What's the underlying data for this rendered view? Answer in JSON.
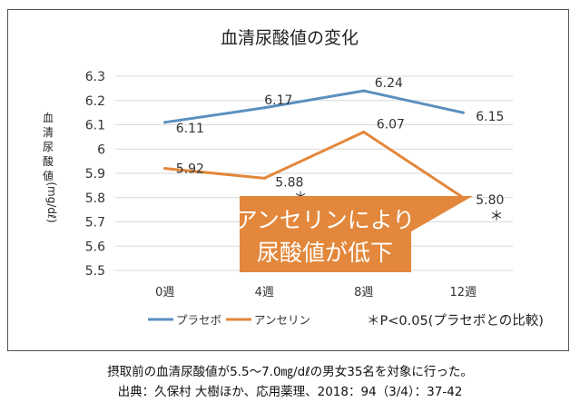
{
  "chart_data": {
    "type": "line",
    "title": "血清尿酸値の変化",
    "ylabel_chars": [
      "血",
      "清",
      "尿",
      "酸",
      "値"
    ],
    "ylabel_unit": "(mg/dℓ)",
    "categories": [
      "0週",
      "4週",
      "8週",
      "12週"
    ],
    "ylim": [
      5.5,
      6.3
    ],
    "yticks": [
      "6.3",
      "6.2",
      "6.1",
      "6",
      "5.9",
      "5.8",
      "5.7",
      "5.6",
      "5.5"
    ],
    "series": [
      {
        "name": "プラセボ",
        "color": "#5b8fbf",
        "values": [
          6.11,
          6.17,
          6.24,
          6.15
        ],
        "labels": [
          "6.11",
          "6.17",
          "6.24",
          "6.15"
        ]
      },
      {
        "name": "アンセリン",
        "color": "#e2873b",
        "values": [
          5.92,
          5.88,
          6.07,
          5.8
        ],
        "labels": [
          "5.92",
          "5.88",
          "6.07",
          "5.80"
        ]
      }
    ],
    "significance_marks": [
      "＊",
      "＊"
    ],
    "significance_note": "＊P<0.05(プラセボとの比較)",
    "callout": {
      "line1": "アンセリンにより",
      "line2": "尿酸値が低下",
      "color": "#e2873b"
    }
  },
  "caption": {
    "line1": "摂取前の血清尿酸値が5.5～7.0㎎/dℓの男女35名を対象に行った。",
    "line2": "出典：久保村 大樹ほか、応用薬理、2018：94（3/4）：37-42"
  }
}
